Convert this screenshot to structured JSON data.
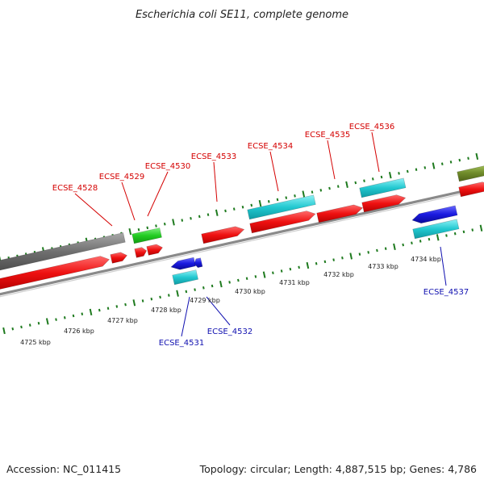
{
  "title": "Escherichia coli SE11, complete genome",
  "footer": {
    "accession": "Accession: NC_011415",
    "summary": "Topology: circular; Length: 4,887,515 bp; Genes: 4,786"
  },
  "colors": {
    "forward_label": "#d40000",
    "reverse_label": "#1010b0",
    "backbone": "#8a8a8a",
    "tick": "#1e7a1e",
    "cds": "#ee1111",
    "trna": "#22cc22",
    "other": "#22c8d0",
    "reverse_cds": "#1a1adf",
    "pseudogene": "#6e6e6e",
    "olive": "#6f8a2a"
  },
  "axis_labels": [
    "4725 kbp",
    "4726 kbp",
    "4727 kbp",
    "4728 kbp",
    "4729 kbp",
    "4730 kbp",
    "4731 kbp",
    "4732 kbp",
    "4733 kbp",
    "4734 kbp"
  ],
  "forward_genes": [
    "ECSE_4528",
    "ECSE_4529",
    "ECSE_4530",
    "ECSE_4533",
    "ECSE_4534",
    "ECSE_4535",
    "ECSE_4536"
  ],
  "reverse_genes": [
    "ECSE_4531",
    "ECSE_4532",
    "ECSE_4537"
  ],
  "feature_types": [
    "pseudogene",
    "CDS",
    "tRNA",
    "other",
    "reverse CDS"
  ]
}
